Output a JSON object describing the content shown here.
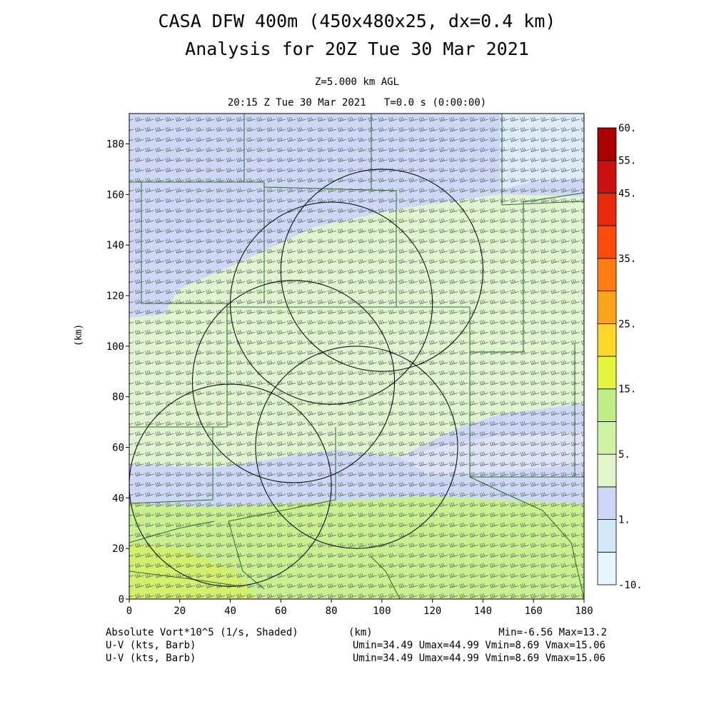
{
  "title": {
    "line1": "CASA DFW 400m (450x480x25, dx=0.4 km)",
    "line2": "Analysis for 20Z Tue 30 Mar 2021"
  },
  "subtitle": {
    "level": "Z=5.000 km AGL",
    "time": "20:15 Z Tue 30 Mar 2021   T=0.0 s (0:00:00)"
  },
  "footer": {
    "field": "Absolute Vort*10^5 (1/s, Shaded)",
    "x_unit": "(km)",
    "min_max": "Min=-6.56 Max=13.2",
    "uv_label_1": "U-V (kts, Barb)",
    "uv_label_2": "U-V (kts, Barb)",
    "uv_stats_1": "Umin=34.49 Umax=44.99 Vmin=8.69 Vmax=15.06",
    "uv_stats_2": "Umin=34.49 Umax=44.99 Vmin=8.69 Vmax=15.06"
  },
  "chart_data": {
    "type": "heatmap",
    "title": "CASA DFW 400m (450x480x25, dx=0.4 km)",
    "xlabel": "(km)",
    "ylabel": "(km)",
    "xlim": [
      0,
      180
    ],
    "ylim": [
      0,
      192
    ],
    "x_ticks": [
      0,
      20,
      40,
      60,
      80,
      100,
      120,
      140,
      160,
      180
    ],
    "y_ticks": [
      0,
      20,
      40,
      60,
      80,
      100,
      120,
      140,
      160,
      180
    ],
    "field_min": -6.56,
    "field_max": 13.2,
    "colorbar": {
      "labels": [
        "-10.",
        "1.",
        "5.",
        "15.",
        "25.",
        "35.",
        "45.",
        "55.",
        "60."
      ],
      "colors": [
        "#e6f4fb",
        "#d3e8f8",
        "#cfd5f5",
        "#e0f5c8",
        "#cff2a4",
        "#c0ee84",
        "#e2f73c",
        "#ffd72a",
        "#ffa51c",
        "#ff7c10",
        "#ff4c0a",
        "#e82a0a",
        "#cc1010",
        "#aa0000"
      ]
    },
    "wind": {
      "u_min": 34.49,
      "u_max": 44.99,
      "v_min": 8.69,
      "v_max": 15.06,
      "units": "kts"
    },
    "radar_rings": [
      {
        "center_km": [
          100,
          130
        ],
        "radius_km": 40
      },
      {
        "center_km": [
          65,
          86
        ],
        "radius_km": 40
      },
      {
        "center_km": [
          80,
          117
        ],
        "radius_km": 40
      },
      {
        "center_km": [
          90,
          60
        ],
        "radius_km": 40
      },
      {
        "center_km": [
          40,
          45
        ],
        "radius_km": 40
      }
    ]
  }
}
